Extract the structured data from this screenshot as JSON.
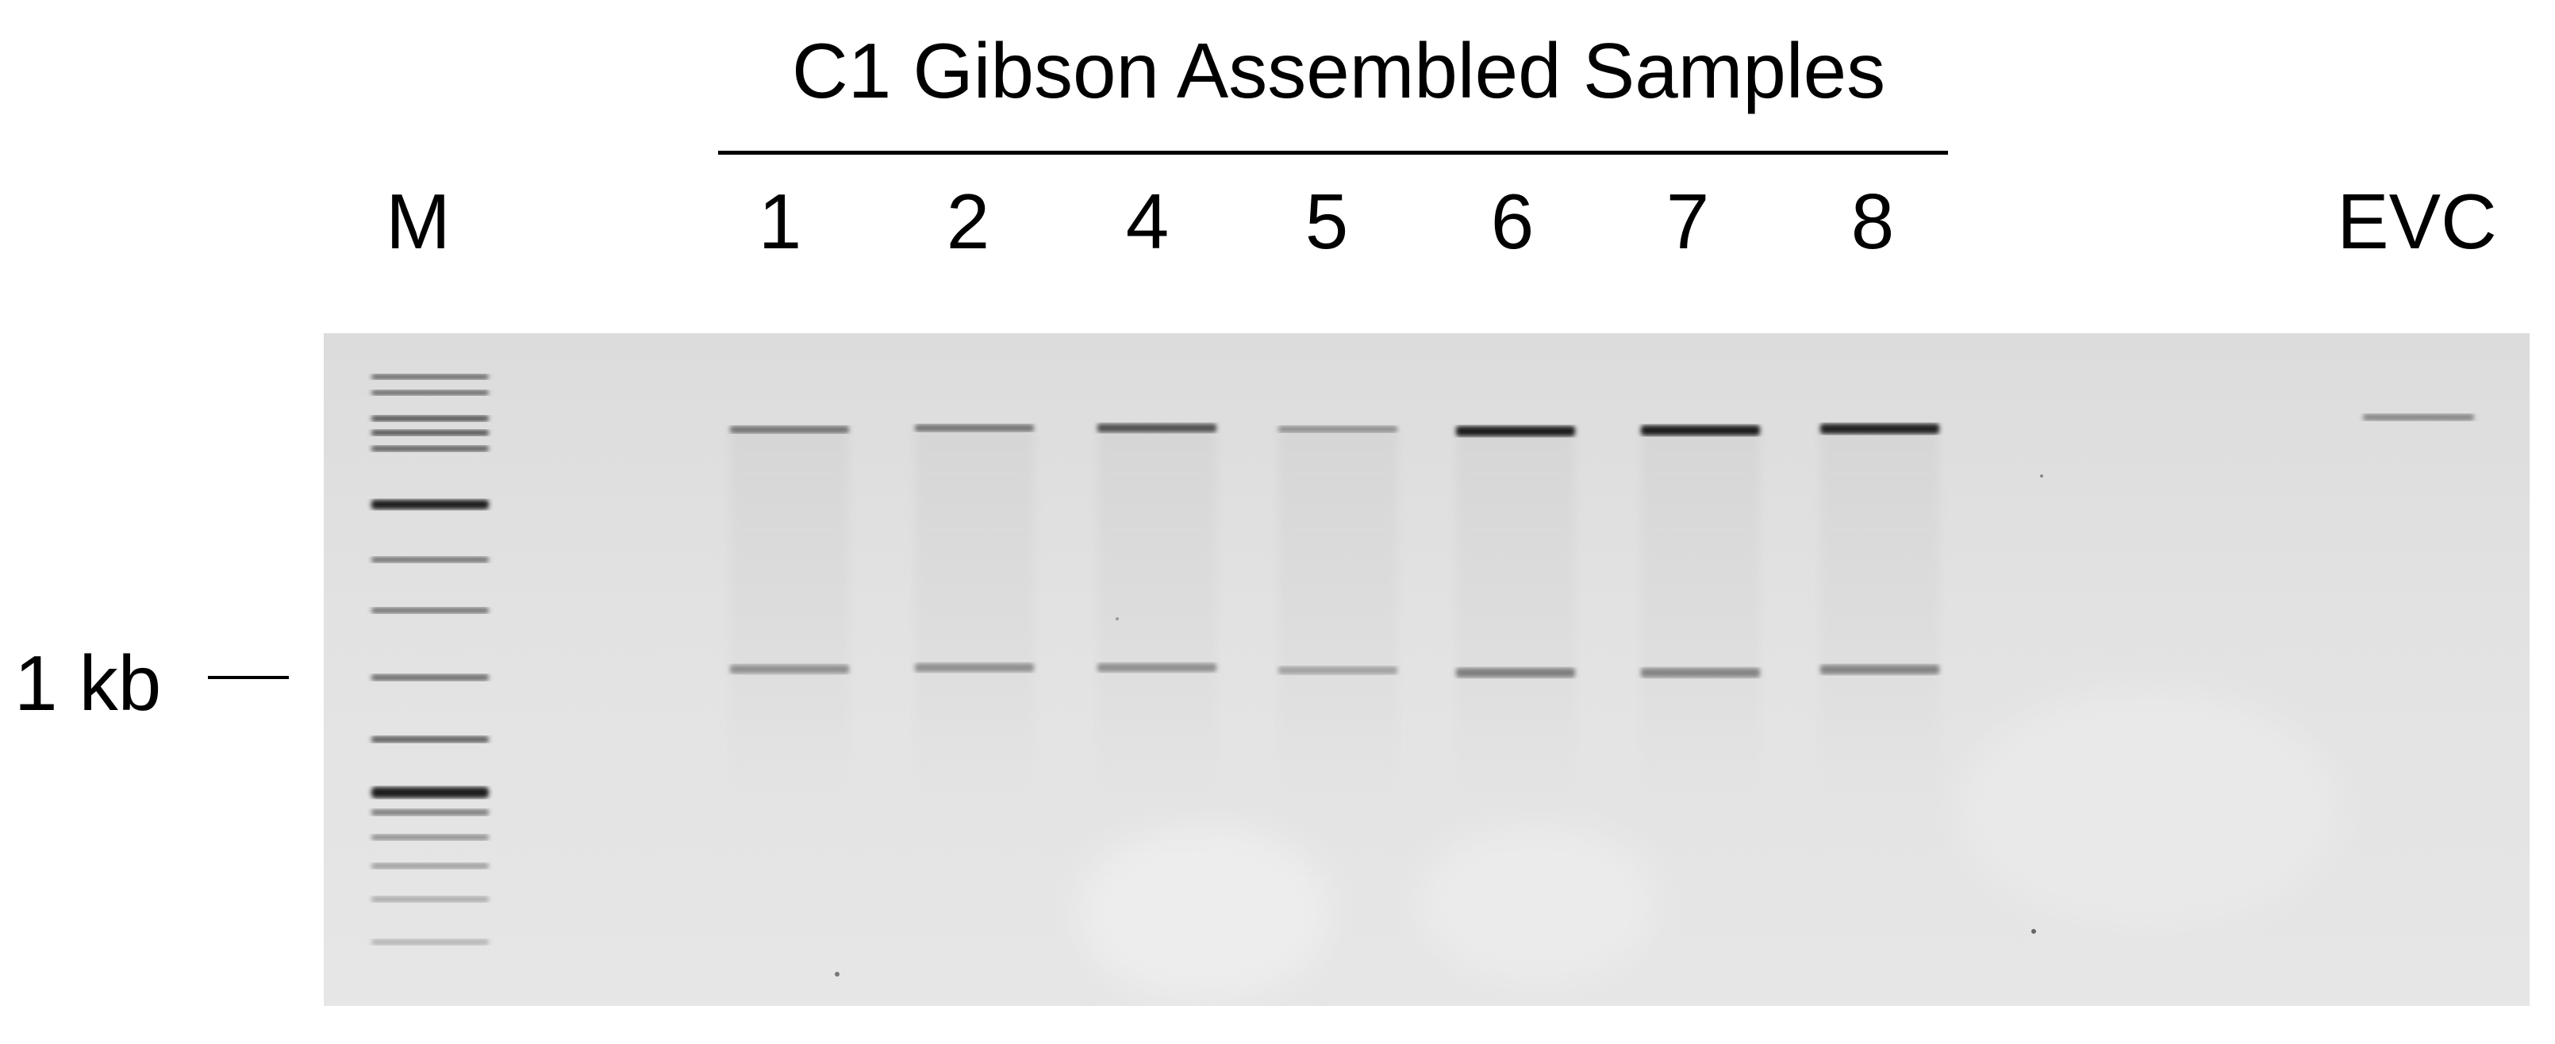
{
  "title": "C1 Gibson Assembled Samples",
  "marker_lane_label": "M",
  "sample_lane_labels": [
    "1",
    "2",
    "4",
    "5",
    "6",
    "7",
    "8"
  ],
  "control_lane_label": "EVC",
  "size_marker_label": "1 kb",
  "colors": {
    "text": "#000000",
    "gel_background": "#e2e2e2",
    "band_dark": "#1a1a1a"
  },
  "band_intensity": {
    "upper_band": [
      0.45,
      0.45,
      0.65,
      0.35,
      0.95,
      0.95,
      0.9,
      0.0,
      0.45
    ],
    "lower_band": [
      0.35,
      0.35,
      0.35,
      0.25,
      0.4,
      0.4,
      0.4,
      0.0,
      0.0
    ]
  }
}
